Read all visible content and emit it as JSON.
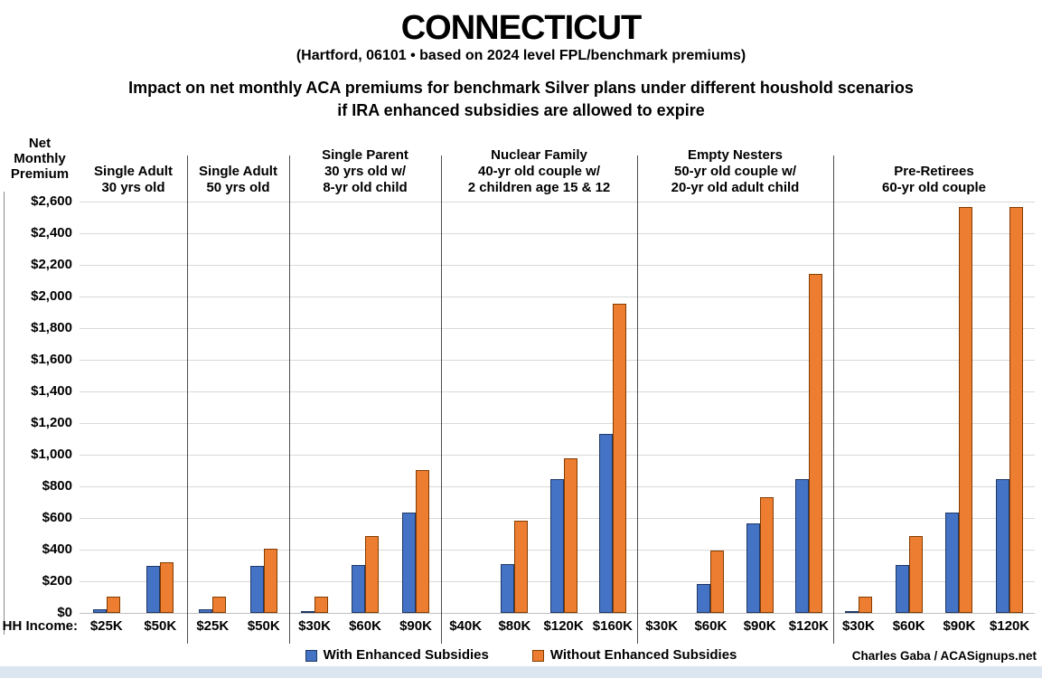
{
  "title": "CONNECTICUT",
  "subtitle": "(Hartford, 06101 • based on 2024 level FPL/benchmark premiums)",
  "description_line1": "Impact on net monthly ACA premiums for benchmark Silver plans under different houshold scenarios",
  "description_line2": "if IRA enhanced subsidies are allowed to expire",
  "y_axis_title": [
    "Net",
    "Monthly",
    "Premium"
  ],
  "hh_income_label": "HH Income:",
  "legend": {
    "with_label": "With Enhanced Subsidies",
    "without_label": "Without Enhanced Subsidies"
  },
  "credit": "Charles Gaba / ACASignups.net",
  "colors": {
    "with_fill": "#4472C4",
    "with_border": "#1F3864",
    "without_fill": "#ED7D31",
    "without_border": "#833C00",
    "gridline": "#D9D9D9",
    "baseline": "#BFBFBF",
    "separator": "#4D4D4D",
    "bottom_band": "#DCE6F1"
  },
  "chart_data": {
    "type": "bar",
    "title": "Impact on net monthly ACA premiums for benchmark Silver plans under different houshold scenarios if IRA enhanced subsidies are allowed to expire",
    "ylabel": "Net Monthly Premium",
    "xlabel": "HH Income",
    "ylim": [
      0,
      2600
    ],
    "ytick_step": 200,
    "ytick_format": "$#,###",
    "grid": true,
    "legend_position": "bottom",
    "series_names": [
      "With Enhanced Subsidies",
      "Without Enhanced Subsidies"
    ],
    "groups": [
      {
        "label": [
          "Single Adult",
          "30 yrs old"
        ],
        "categories": [
          "$25K",
          "$50K"
        ],
        "with": [
          20,
          295
        ],
        "without": [
          105,
          320
        ]
      },
      {
        "label": [
          "Single Adult",
          "50 yrs old"
        ],
        "categories": [
          "$25K",
          "$50K"
        ],
        "with": [
          20,
          295
        ],
        "without": [
          105,
          405
        ]
      },
      {
        "label": [
          "Single Parent",
          "30 yrs old w/",
          "8-yr old child"
        ],
        "categories": [
          "$30K",
          "$60K",
          "$90K"
        ],
        "with": [
          10,
          305,
          635
        ],
        "without": [
          105,
          485,
          900
        ]
      },
      {
        "label": [
          "Nuclear Family",
          "40-yr old couple w/",
          "2 children age 15 & 12"
        ],
        "categories": [
          "$40K",
          "$80K",
          "$120K",
          "$160K"
        ],
        "with": [
          0,
          310,
          845,
          1130
        ],
        "without": [
          0,
          585,
          975,
          1955
        ]
      },
      {
        "label": [
          "Empty Nesters",
          "50-yr old couple w/",
          "20-yr old adult child"
        ],
        "categories": [
          "$30K",
          "$60K",
          "$90K",
          "$120K"
        ],
        "with": [
          0,
          180,
          565,
          845
        ],
        "without": [
          0,
          395,
          730,
          2140
        ]
      },
      {
        "label": [
          "Pre-Retirees",
          "60-yr old couple"
        ],
        "categories": [
          "$30K",
          "$60K",
          "$90K",
          "$120K"
        ],
        "with": [
          10,
          305,
          635,
          845
        ],
        "without": [
          105,
          485,
          2565,
          2565
        ]
      }
    ]
  }
}
